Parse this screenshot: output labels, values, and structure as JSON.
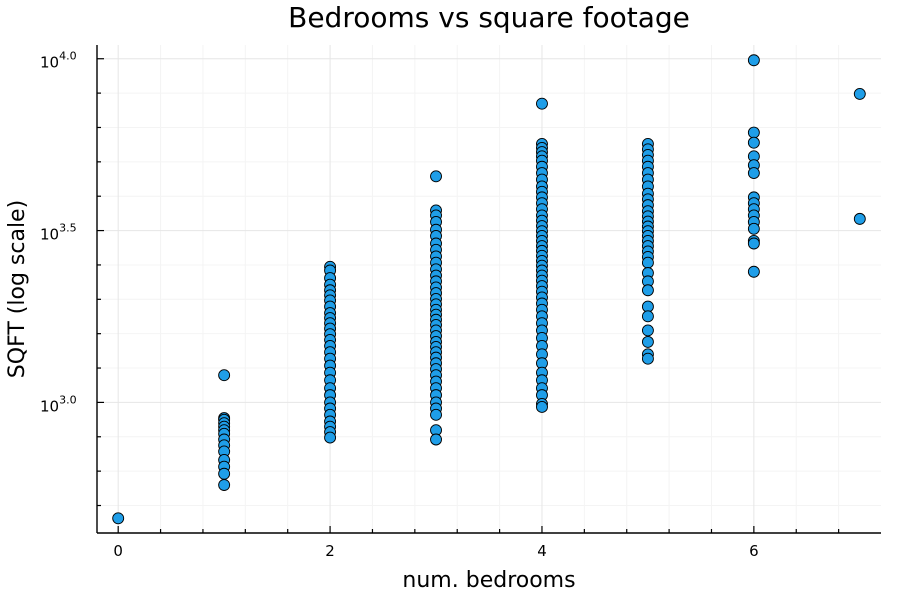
{
  "chart_data": {
    "type": "scatter",
    "title": "Bedrooms vs square footage",
    "xlabel": "num. bedrooms",
    "ylabel": "SQFT (log scale)",
    "x_scale": "linear",
    "y_scale": "log10",
    "xlim": [
      -0.2,
      7.2
    ],
    "ylim": [
      2.62,
      4.04
    ],
    "x_ticks": [
      {
        "value": 0,
        "label": "0"
      },
      {
        "value": 2,
        "label": "2"
      },
      {
        "value": 4,
        "label": "4"
      },
      {
        "value": 6,
        "label": "6"
      }
    ],
    "y_ticks": [
      {
        "value": 3.0,
        "base": "10",
        "exp": "3.0"
      },
      {
        "value": 3.5,
        "base": "10",
        "exp": "3.5"
      },
      {
        "value": 4.0,
        "base": "10",
        "exp": "4.0"
      }
    ],
    "grid": true,
    "legend": "none",
    "marker_color": "#1f9ee8",
    "series": [
      {
        "points": [
          {
            "x": 0,
            "y": 460
          },
          {
            "x": 1,
            "y": 1200
          },
          {
            "x": 1,
            "y": 900
          },
          {
            "x": 1,
            "y": 890
          },
          {
            "x": 1,
            "y": 870
          },
          {
            "x": 1,
            "y": 850
          },
          {
            "x": 1,
            "y": 830
          },
          {
            "x": 1,
            "y": 810
          },
          {
            "x": 1,
            "y": 780
          },
          {
            "x": 1,
            "y": 750
          },
          {
            "x": 1,
            "y": 720
          },
          {
            "x": 1,
            "y": 680
          },
          {
            "x": 1,
            "y": 650
          },
          {
            "x": 1,
            "y": 620
          },
          {
            "x": 1,
            "y": 575
          },
          {
            "x": 2,
            "y": 2480
          },
          {
            "x": 2,
            "y": 2420
          },
          {
            "x": 2,
            "y": 2300
          },
          {
            "x": 2,
            "y": 2200
          },
          {
            "x": 2,
            "y": 2120
          },
          {
            "x": 2,
            "y": 2050
          },
          {
            "x": 2,
            "y": 1980
          },
          {
            "x": 2,
            "y": 1900
          },
          {
            "x": 2,
            "y": 1820
          },
          {
            "x": 2,
            "y": 1760
          },
          {
            "x": 2,
            "y": 1700
          },
          {
            "x": 2,
            "y": 1640
          },
          {
            "x": 2,
            "y": 1580
          },
          {
            "x": 2,
            "y": 1520
          },
          {
            "x": 2,
            "y": 1460
          },
          {
            "x": 2,
            "y": 1400
          },
          {
            "x": 2,
            "y": 1340
          },
          {
            "x": 2,
            "y": 1280
          },
          {
            "x": 2,
            "y": 1220
          },
          {
            "x": 2,
            "y": 1160
          },
          {
            "x": 2,
            "y": 1100
          },
          {
            "x": 2,
            "y": 1050
          },
          {
            "x": 2,
            "y": 1000
          },
          {
            "x": 2,
            "y": 960
          },
          {
            "x": 2,
            "y": 920
          },
          {
            "x": 2,
            "y": 880
          },
          {
            "x": 2,
            "y": 850
          },
          {
            "x": 2,
            "y": 820
          },
          {
            "x": 2,
            "y": 790
          },
          {
            "x": 3,
            "y": 4550
          },
          {
            "x": 3,
            "y": 3620
          },
          {
            "x": 3,
            "y": 3500
          },
          {
            "x": 3,
            "y": 3350
          },
          {
            "x": 3,
            "y": 3180
          },
          {
            "x": 3,
            "y": 3050
          },
          {
            "x": 3,
            "y": 2900
          },
          {
            "x": 3,
            "y": 2780
          },
          {
            "x": 3,
            "y": 2660
          },
          {
            "x": 3,
            "y": 2550
          },
          {
            "x": 3,
            "y": 2440
          },
          {
            "x": 3,
            "y": 2340
          },
          {
            "x": 3,
            "y": 2250
          },
          {
            "x": 3,
            "y": 2160
          },
          {
            "x": 3,
            "y": 2080
          },
          {
            "x": 3,
            "y": 2000
          },
          {
            "x": 3,
            "y": 1930
          },
          {
            "x": 3,
            "y": 1860
          },
          {
            "x": 3,
            "y": 1800
          },
          {
            "x": 3,
            "y": 1740
          },
          {
            "x": 3,
            "y": 1680
          },
          {
            "x": 3,
            "y": 1620
          },
          {
            "x": 3,
            "y": 1560
          },
          {
            "x": 3,
            "y": 1500
          },
          {
            "x": 3,
            "y": 1450
          },
          {
            "x": 3,
            "y": 1400
          },
          {
            "x": 3,
            "y": 1350
          },
          {
            "x": 3,
            "y": 1300
          },
          {
            "x": 3,
            "y": 1250
          },
          {
            "x": 3,
            "y": 1200
          },
          {
            "x": 3,
            "y": 1150
          },
          {
            "x": 3,
            "y": 1100
          },
          {
            "x": 3,
            "y": 1050
          },
          {
            "x": 3,
            "y": 1000
          },
          {
            "x": 3,
            "y": 960
          },
          {
            "x": 3,
            "y": 920
          },
          {
            "x": 3,
            "y": 830
          },
          {
            "x": 3,
            "y": 780
          },
          {
            "x": 4,
            "y": 7400
          },
          {
            "x": 4,
            "y": 5650
          },
          {
            "x": 4,
            "y": 5500
          },
          {
            "x": 4,
            "y": 5350
          },
          {
            "x": 4,
            "y": 5200
          },
          {
            "x": 4,
            "y": 5050
          },
          {
            "x": 4,
            "y": 4850
          },
          {
            "x": 4,
            "y": 4650
          },
          {
            "x": 4,
            "y": 4450
          },
          {
            "x": 4,
            "y": 4250
          },
          {
            "x": 4,
            "y": 4100
          },
          {
            "x": 4,
            "y": 3950
          },
          {
            "x": 4,
            "y": 3800
          },
          {
            "x": 4,
            "y": 3650
          },
          {
            "x": 4,
            "y": 3500
          },
          {
            "x": 4,
            "y": 3380
          },
          {
            "x": 4,
            "y": 3260
          },
          {
            "x": 4,
            "y": 3150
          },
          {
            "x": 4,
            "y": 3050
          },
          {
            "x": 4,
            "y": 2950
          },
          {
            "x": 4,
            "y": 2850
          },
          {
            "x": 4,
            "y": 2760
          },
          {
            "x": 4,
            "y": 2670
          },
          {
            "x": 4,
            "y": 2580
          },
          {
            "x": 4,
            "y": 2500
          },
          {
            "x": 4,
            "y": 2420
          },
          {
            "x": 4,
            "y": 2340
          },
          {
            "x": 4,
            "y": 2260
          },
          {
            "x": 4,
            "y": 2180
          },
          {
            "x": 4,
            "y": 2100
          },
          {
            "x": 4,
            "y": 2020
          },
          {
            "x": 4,
            "y": 1940
          },
          {
            "x": 4,
            "y": 1860
          },
          {
            "x": 4,
            "y": 1780
          },
          {
            "x": 4,
            "y": 1700
          },
          {
            "x": 4,
            "y": 1620
          },
          {
            "x": 4,
            "y": 1540
          },
          {
            "x": 4,
            "y": 1460
          },
          {
            "x": 4,
            "y": 1380
          },
          {
            "x": 4,
            "y": 1300
          },
          {
            "x": 4,
            "y": 1220
          },
          {
            "x": 4,
            "y": 1160
          },
          {
            "x": 4,
            "y": 1100
          },
          {
            "x": 4,
            "y": 1050
          },
          {
            "x": 4,
            "y": 990
          },
          {
            "x": 4,
            "y": 970
          },
          {
            "x": 5,
            "y": 5650
          },
          {
            "x": 5,
            "y": 5450
          },
          {
            "x": 5,
            "y": 5250
          },
          {
            "x": 5,
            "y": 5050
          },
          {
            "x": 5,
            "y": 4850
          },
          {
            "x": 5,
            "y": 4650
          },
          {
            "x": 5,
            "y": 4450
          },
          {
            "x": 5,
            "y": 4250
          },
          {
            "x": 5,
            "y": 4050
          },
          {
            "x": 5,
            "y": 3900
          },
          {
            "x": 5,
            "y": 3750
          },
          {
            "x": 5,
            "y": 3600
          },
          {
            "x": 5,
            "y": 3480
          },
          {
            "x": 5,
            "y": 3360
          },
          {
            "x": 5,
            "y": 3250
          },
          {
            "x": 5,
            "y": 3150
          },
          {
            "x": 5,
            "y": 3050
          },
          {
            "x": 5,
            "y": 2950
          },
          {
            "x": 5,
            "y": 2850
          },
          {
            "x": 5,
            "y": 2750
          },
          {
            "x": 5,
            "y": 2650
          },
          {
            "x": 5,
            "y": 2550
          },
          {
            "x": 5,
            "y": 2380
          },
          {
            "x": 5,
            "y": 2250
          },
          {
            "x": 5,
            "y": 2120
          },
          {
            "x": 5,
            "y": 1900
          },
          {
            "x": 5,
            "y": 1780
          },
          {
            "x": 5,
            "y": 1620
          },
          {
            "x": 5,
            "y": 1500
          },
          {
            "x": 5,
            "y": 1380
          },
          {
            "x": 5,
            "y": 1340
          },
          {
            "x": 6,
            "y": 9900
          },
          {
            "x": 6,
            "y": 6100
          },
          {
            "x": 6,
            "y": 5700
          },
          {
            "x": 6,
            "y": 5200
          },
          {
            "x": 6,
            "y": 4900
          },
          {
            "x": 6,
            "y": 4650
          },
          {
            "x": 6,
            "y": 3950
          },
          {
            "x": 6,
            "y": 3800
          },
          {
            "x": 6,
            "y": 3650
          },
          {
            "x": 6,
            "y": 3500
          },
          {
            "x": 6,
            "y": 3350
          },
          {
            "x": 6,
            "y": 3200
          },
          {
            "x": 6,
            "y": 2950
          },
          {
            "x": 6,
            "y": 2900
          },
          {
            "x": 6,
            "y": 2400
          },
          {
            "x": 7,
            "y": 7900
          },
          {
            "x": 7,
            "y": 3420
          }
        ]
      }
    ]
  }
}
